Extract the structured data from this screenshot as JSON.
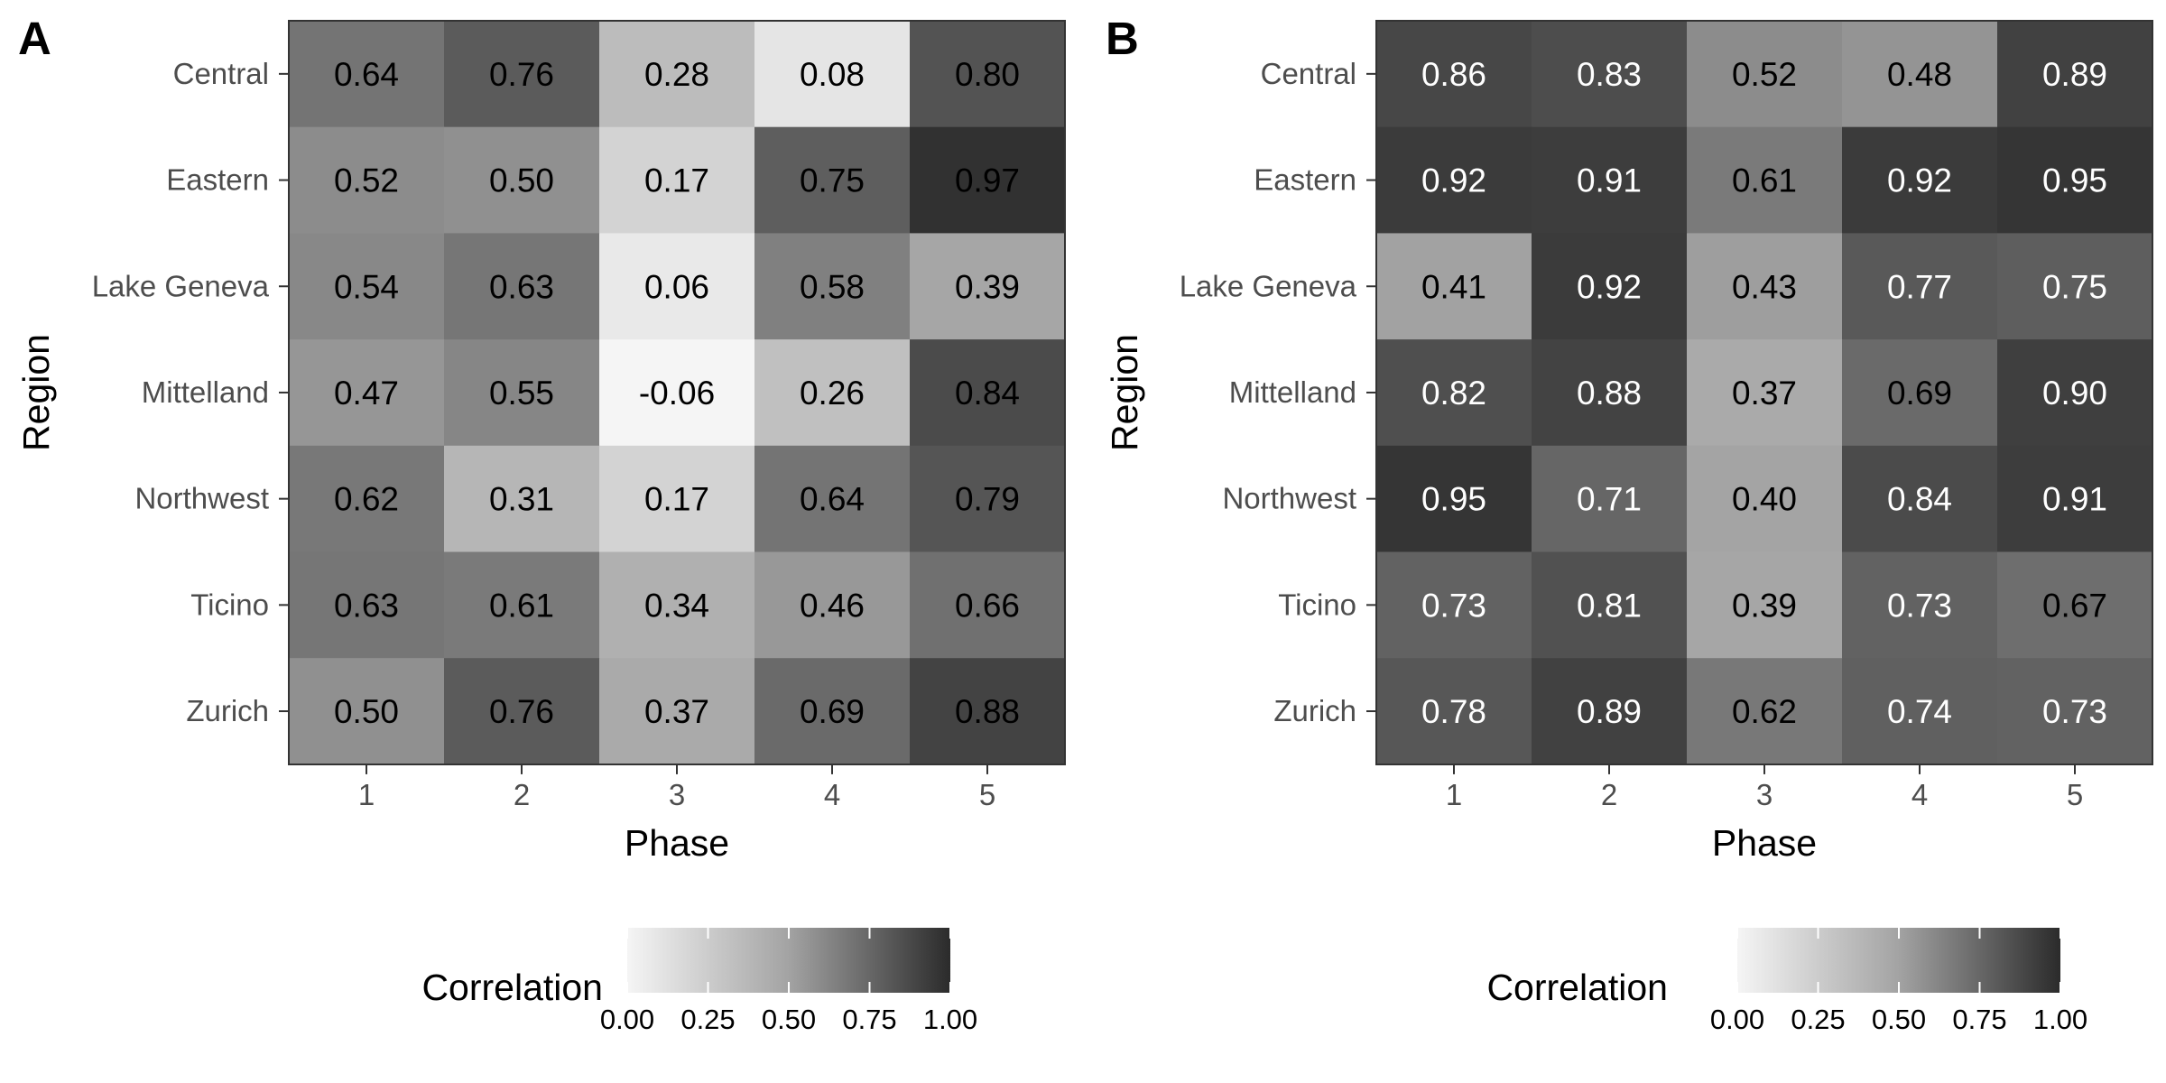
{
  "chart_data": [
    {
      "type": "heatmap",
      "panel_label": "A",
      "xlabel": "Phase",
      "ylabel": "Region",
      "x_categories": [
        "1",
        "2",
        "3",
        "4",
        "5"
      ],
      "y_categories": [
        "Central",
        "Eastern",
        "Lake Geneva",
        "Mittelland",
        "Northwest",
        "Ticino",
        "Zurich"
      ],
      "values": [
        [
          0.64,
          0.76,
          0.28,
          0.08,
          0.8
        ],
        [
          0.52,
          0.5,
          0.17,
          0.75,
          0.97
        ],
        [
          0.54,
          0.63,
          0.06,
          0.58,
          0.39
        ],
        [
          0.47,
          0.55,
          -0.06,
          0.26,
          0.84
        ],
        [
          0.62,
          0.31,
          0.17,
          0.64,
          0.79
        ],
        [
          0.63,
          0.61,
          0.34,
          0.46,
          0.66
        ],
        [
          0.5,
          0.76,
          0.37,
          0.69,
          0.88
        ]
      ],
      "cell_labels": [
        [
          "0.64",
          "0.76",
          "0.28",
          "0.08",
          "0.80"
        ],
        [
          "0.52",
          "0.50",
          "0.17",
          "0.75",
          "0.97"
        ],
        [
          "0.54",
          "0.63",
          "0.06",
          "0.58",
          "0.39"
        ],
        [
          "0.47",
          "0.55",
          "-0.06",
          "0.26",
          "0.84"
        ],
        [
          "0.62",
          "0.31",
          "0.17",
          "0.64",
          "0.79"
        ],
        [
          "0.63",
          "0.61",
          "0.34",
          "0.46",
          "0.66"
        ],
        [
          "0.50",
          "0.76",
          "0.37",
          "0.69",
          "0.88"
        ]
      ],
      "label_color": "#000000",
      "legend": {
        "title": "Correlation",
        "ticks": [
          "0.00",
          "0.25",
          "0.50",
          "0.75",
          "1.00"
        ],
        "range": [
          -0.06,
          0.97
        ],
        "position": "bottom",
        "color_low": "#f5f5f5",
        "color_high": "#2b2b2b"
      }
    },
    {
      "type": "heatmap",
      "panel_label": "B",
      "xlabel": "Phase",
      "ylabel": "Region",
      "x_categories": [
        "1",
        "2",
        "3",
        "4",
        "5"
      ],
      "y_categories": [
        "Central",
        "Eastern",
        "Lake Geneva",
        "Mittelland",
        "Northwest",
        "Ticino",
        "Zurich"
      ],
      "values": [
        [
          0.86,
          0.83,
          0.52,
          0.48,
          0.89
        ],
        [
          0.92,
          0.91,
          0.61,
          0.92,
          0.95
        ],
        [
          0.41,
          0.92,
          0.43,
          0.77,
          0.75
        ],
        [
          0.82,
          0.88,
          0.37,
          0.69,
          0.9
        ],
        [
          0.95,
          0.71,
          0.4,
          0.84,
          0.91
        ],
        [
          0.73,
          0.81,
          0.39,
          0.73,
          0.67
        ],
        [
          0.78,
          0.89,
          0.62,
          0.74,
          0.73
        ]
      ],
      "cell_labels": [
        [
          "0.86",
          "0.83",
          "0.52",
          "0.48",
          "0.89"
        ],
        [
          "0.92",
          "0.91",
          "0.61",
          "0.92",
          "0.95"
        ],
        [
          "0.41",
          "0.92",
          "0.43",
          "0.77",
          "0.75"
        ],
        [
          "0.82",
          "0.88",
          "0.37",
          "0.69",
          "0.90"
        ],
        [
          "0.95",
          "0.71",
          "0.40",
          "0.84",
          "0.91"
        ],
        [
          "0.73",
          "0.81",
          "0.39",
          "0.73",
          "0.67"
        ],
        [
          "0.78",
          "0.89",
          "0.62",
          "0.74",
          "0.73"
        ]
      ],
      "label_colors": [
        [
          "#ffffff",
          "#ffffff",
          "#000000",
          "#000000",
          "#ffffff"
        ],
        [
          "#ffffff",
          "#ffffff",
          "#000000",
          "#ffffff",
          "#ffffff"
        ],
        [
          "#000000",
          "#ffffff",
          "#000000",
          "#ffffff",
          "#ffffff"
        ],
        [
          "#ffffff",
          "#ffffff",
          "#000000",
          "#000000",
          "#ffffff"
        ],
        [
          "#ffffff",
          "#ffffff",
          "#000000",
          "#ffffff",
          "#ffffff"
        ],
        [
          "#ffffff",
          "#ffffff",
          "#000000",
          "#ffffff",
          "#000000"
        ],
        [
          "#ffffff",
          "#ffffff",
          "#000000",
          "#ffffff",
          "#ffffff"
        ]
      ],
      "legend": {
        "title": "Correlation",
        "ticks": [
          "0.00",
          "0.25",
          "0.50",
          "0.75",
          "1.00"
        ],
        "range": [
          0.37,
          0.95
        ],
        "position": "bottom",
        "color_low": "#f5f5f5",
        "color_high": "#2b2b2b"
      }
    }
  ]
}
